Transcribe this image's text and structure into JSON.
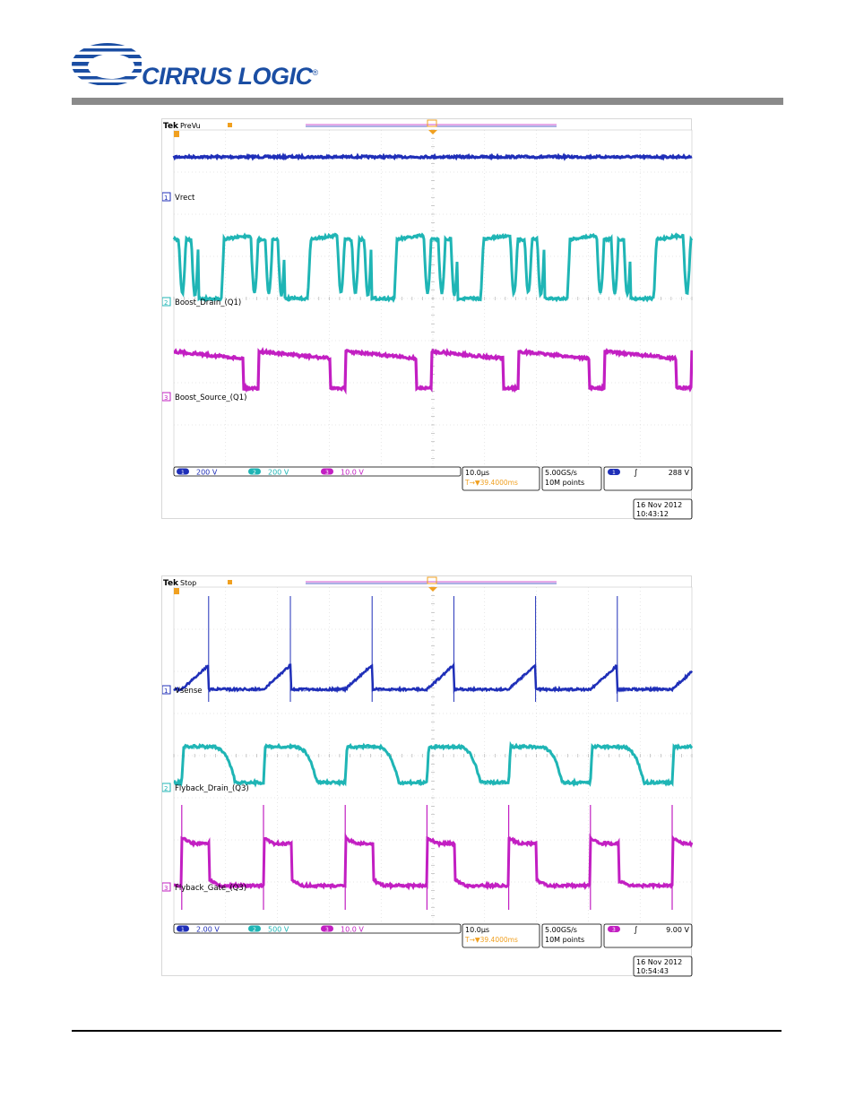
{
  "header": {
    "logo_text": "CIRRUS LOGIC",
    "logo_reg": "®",
    "brand_color": "#1b4ea3"
  },
  "scopes": [
    {
      "brand": "Tek",
      "mode": "PreVu",
      "date": "16 Nov 2012",
      "time": "10:43:12",
      "timebase": "10.0µs",
      "trigger_pos": "T→▼39.4000ms",
      "sample_rate": "5.00GS/s",
      "record_length": "10M points",
      "trigger_channel": "1",
      "trigger_level": "288 V",
      "channels": [
        {
          "num": "1",
          "scale": "200 V",
          "label": "Vrect",
          "color": "#1f2fb8"
        },
        {
          "num": "2",
          "scale": "200 V",
          "label": "Boost_Drain_(Q1)",
          "color": "#1fb5b5"
        },
        {
          "num": "3",
          "scale": "10.0 V",
          "label": "Boost_Source_(Q1)",
          "color": "#c21fc2"
        }
      ]
    },
    {
      "brand": "Tek",
      "mode": "Stop",
      "date": "16 Nov 2012",
      "time": "10:54:43",
      "timebase": "10.0µs",
      "trigger_pos": "T→▼39.4000ms",
      "sample_rate": "5.00GS/s",
      "record_length": "10M points",
      "trigger_channel": "3",
      "trigger_level": "9.00 V",
      "channels": [
        {
          "num": "1",
          "scale": "2.00 V",
          "label": "Vsense",
          "color": "#1f2fb8"
        },
        {
          "num": "2",
          "scale": "500 V",
          "label": "Flyback_Drain_(Q3)",
          "color": "#1fb5b5"
        },
        {
          "num": "3",
          "scale": "10.0 V",
          "label": "Flyback_Gate_(Q3)",
          "color": "#c21fc2"
        }
      ]
    }
  ]
}
